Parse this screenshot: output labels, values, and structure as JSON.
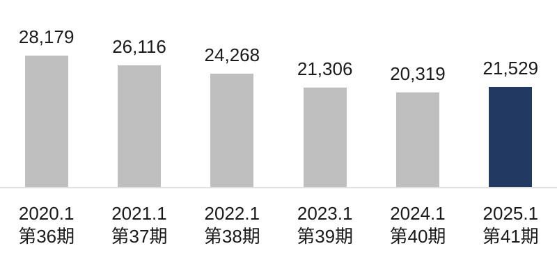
{
  "chart_data": {
    "type": "bar",
    "title": "",
    "xlabel": "",
    "ylabel": "",
    "categories": [
      "2020.1",
      "2021.1",
      "2022.1",
      "2023.1",
      "2024.1",
      "2025.1"
    ],
    "category_sublabels": [
      "第36期",
      "第37期",
      "第38期",
      "第39期",
      "第40期",
      "第41期"
    ],
    "values": [
      28179,
      26116,
      24268,
      21306,
      20319,
      21529
    ],
    "value_labels": [
      "28,179",
      "26,116",
      "24,268",
      "21,306",
      "20,319",
      "21,529"
    ],
    "highlight_index": 5,
    "y_axis_visible": false,
    "x_axis_line_visible": true,
    "grid": false,
    "legend": false,
    "colors": {
      "bar_default": "#bfbfbf",
      "bar_highlight": "#223a62",
      "axis_line": "#e0e0e0",
      "text": "#1a1a1a",
      "background": "#ffffff"
    }
  }
}
